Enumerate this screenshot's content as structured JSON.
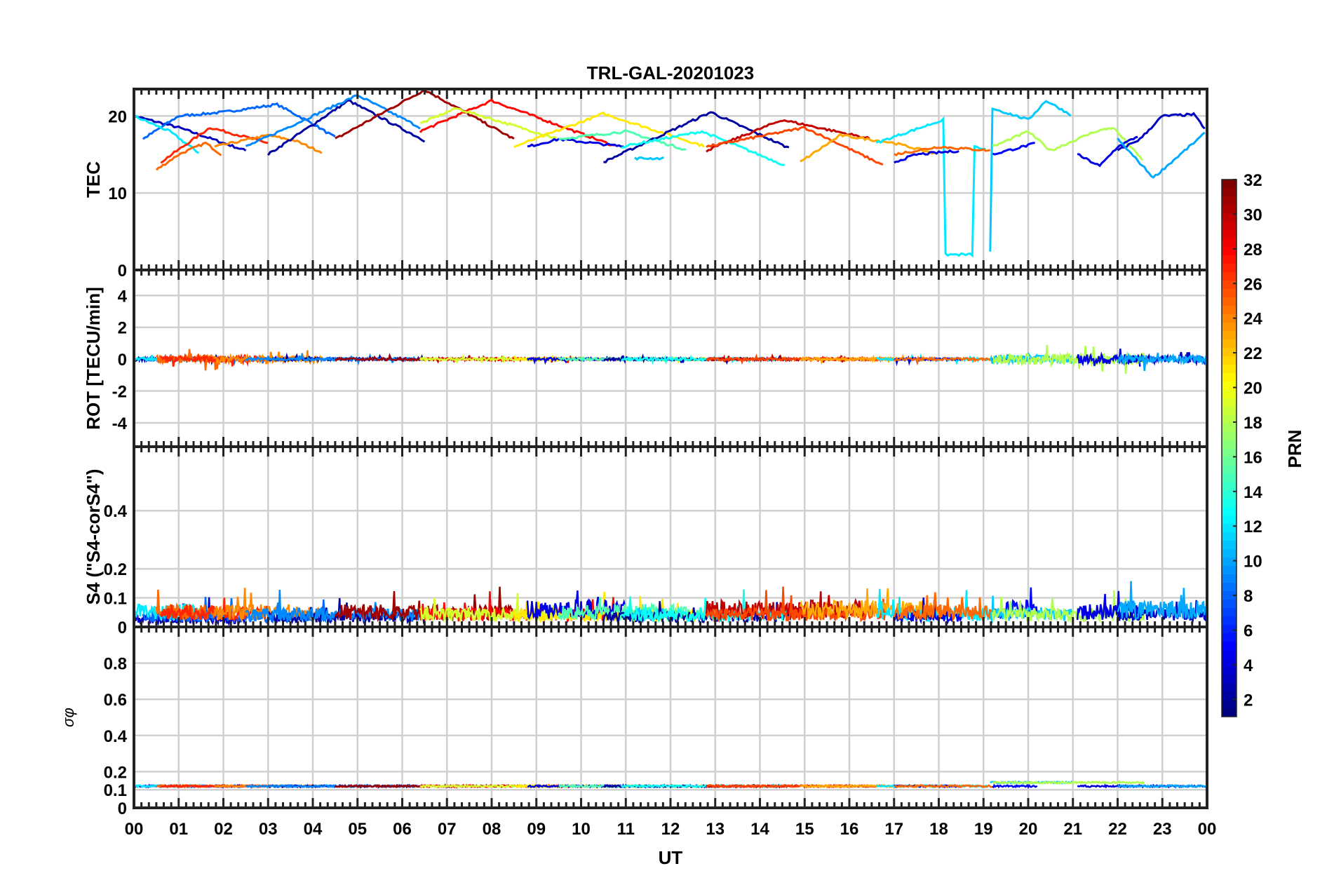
{
  "chart_data": {
    "type": "line",
    "title": "TRL-GAL-20201023",
    "xlabel": "UT",
    "xlim": [
      0,
      24
    ],
    "x_tick_labels": [
      "00",
      "01",
      "02",
      "03",
      "04",
      "05",
      "06",
      "07",
      "08",
      "09",
      "10",
      "11",
      "12",
      "13",
      "14",
      "15",
      "16",
      "17",
      "18",
      "19",
      "20",
      "21",
      "22",
      "23",
      "00"
    ],
    "colorbar": {
      "label": "PRN",
      "range": [
        1,
        32
      ],
      "ticks": [
        "2",
        "4",
        "6",
        "8",
        "10",
        "12",
        "14",
        "16",
        "18",
        "20",
        "22",
        "24",
        "26",
        "28",
        "30",
        "32"
      ],
      "colormap": "jet"
    },
    "panels": [
      {
        "id": "tec",
        "ylabel": "TEC",
        "ylim": [
          0,
          23.5
        ],
        "ticks": [
          0,
          10,
          20
        ],
        "tick_labels": [
          "0",
          "10",
          "20"
        ]
      },
      {
        "id": "rot",
        "ylabel": "ROT [TECU/min]",
        "ylim": [
          -5.5,
          5.6
        ],
        "ticks": [
          -4,
          -2,
          0,
          2,
          4
        ],
        "tick_labels": [
          "-4",
          "-2",
          "0",
          "2",
          "4"
        ]
      },
      {
        "id": "s4",
        "ylabel": "S4 (\"S4-corS4\")",
        "ylim": [
          0,
          0.62
        ],
        "ticks": [
          0,
          0.1,
          0.2,
          0.4
        ],
        "tick_labels": [
          "0",
          "0.1",
          "0.2",
          "0.4"
        ]
      },
      {
        "id": "sigma",
        "ylabel": "σφ",
        "ylim": [
          0,
          1
        ],
        "ticks": [
          0,
          0.1,
          0.2,
          0.4,
          0.6,
          0.8
        ],
        "tick_labels": [
          "0",
          "0.1",
          "0.2",
          "0.4",
          "0.6",
          "0.8"
        ]
      }
    ],
    "arcs": [
      {
        "prn": 3,
        "tec": [
          [
            0,
            20
          ],
          [
            1,
            18.5
          ],
          [
            2,
            16.5
          ],
          [
            2.5,
            15.5
          ]
        ],
        "rot": 0.1,
        "s4": 0.03,
        "sig": 0.12
      },
      {
        "prn": 8,
        "tec": [
          [
            0.2,
            17
          ],
          [
            1,
            20
          ],
          [
            2,
            20.5
          ],
          [
            3.2,
            21.5
          ],
          [
            4,
            19
          ],
          [
            4.5,
            17.2
          ]
        ],
        "rot": 0.1,
        "s4": 0.04,
        "sig": 0.12
      },
      {
        "prn": 12,
        "tec": [
          [
            0,
            20
          ],
          [
            0.8,
            18
          ],
          [
            1.5,
            15
          ]
        ],
        "rot": 0.1,
        "s4": 0.06,
        "sig": 0.12
      },
      {
        "prn": 25,
        "tec": [
          [
            0.5,
            13
          ],
          [
            1,
            15
          ],
          [
            1.6,
            16.5
          ],
          [
            2,
            14.8
          ]
        ],
        "rot": 0.25,
        "s4": 0.06,
        "sig": 0.12
      },
      {
        "prn": 27,
        "tec": [
          [
            0.6,
            14
          ],
          [
            1.7,
            18.5
          ],
          [
            3,
            16.5
          ]
        ],
        "rot": 0.2,
        "s4": 0.06,
        "sig": 0.12
      },
      {
        "prn": 24,
        "tec": [
          [
            1.8,
            16
          ],
          [
            3,
            17.5
          ],
          [
            3.6,
            16.8
          ],
          [
            4.2,
            15.3
          ]
        ],
        "rot": 0.2,
        "s4": 0.06,
        "sig": 0.12
      },
      {
        "prn": 2,
        "tec": [
          [
            3,
            15
          ],
          [
            4.8,
            22
          ],
          [
            6.5,
            16.8
          ]
        ],
        "rot": 0.08,
        "s4": 0.04,
        "sig": 0.12
      },
      {
        "prn": 9,
        "tec": [
          [
            2.5,
            16
          ],
          [
            5,
            22.7
          ],
          [
            6.4,
            18.5
          ]
        ],
        "rot": 0.08,
        "s4": 0.05,
        "sig": 0.12
      },
      {
        "prn": 31,
        "tec": [
          [
            4.5,
            17
          ],
          [
            6.5,
            23.4
          ],
          [
            8.5,
            17
          ]
        ],
        "rot": 0.08,
        "s4": 0.06,
        "sig": 0.12
      },
      {
        "prn": 28,
        "tec": [
          [
            6.4,
            18
          ],
          [
            8,
            22
          ],
          [
            10.8,
            16
          ]
        ],
        "rot": 0.08,
        "s4": 0.05,
        "sig": 0.12
      },
      {
        "prn": 19,
        "tec": [
          [
            6.4,
            19
          ],
          [
            7.2,
            21
          ],
          [
            9.5,
            17
          ]
        ],
        "rot": 0.08,
        "s4": 0.05,
        "sig": 0.12
      },
      {
        "prn": 21,
        "tec": [
          [
            8.5,
            16
          ],
          [
            10.5,
            20.3
          ],
          [
            12.8,
            16
          ]
        ],
        "rot": 0.08,
        "s4": 0.05,
        "sig": 0.12
      },
      {
        "prn": 4,
        "tec": [
          [
            8.8,
            16
          ],
          [
            9.5,
            17
          ],
          [
            11,
            16
          ]
        ],
        "rot": 0.08,
        "s4": 0.07,
        "sig": 0.12
      },
      {
        "prn": 15,
        "tec": [
          [
            9.5,
            17
          ],
          [
            11,
            18
          ],
          [
            12.4,
            15.5
          ]
        ],
        "rot": 0.08,
        "s4": 0.06,
        "sig": 0.12
      },
      {
        "prn": 11,
        "tec": [
          [
            11.2,
            14.5
          ],
          [
            11.9,
            14.5
          ]
        ],
        "rot": 0.08,
        "s4": 0.05,
        "sig": 0.12
      },
      {
        "prn": 2,
        "tec": [
          [
            10.5,
            14
          ],
          [
            12.9,
            20.5
          ],
          [
            14.7,
            15.7
          ]
        ],
        "rot": 0.08,
        "s4": 0.04,
        "sig": 0.12
      },
      {
        "prn": 13,
        "tec": [
          [
            10.9,
            16
          ],
          [
            12.7,
            18
          ],
          [
            14.6,
            13.5
          ]
        ],
        "rot": 0.08,
        "s4": 0.05,
        "sig": 0.12
      },
      {
        "prn": 30,
        "tec": [
          [
            12.8,
            15.5
          ],
          [
            14.5,
            19.5
          ],
          [
            16.5,
            17
          ]
        ],
        "rot": 0.08,
        "s4": 0.07,
        "sig": 0.12
      },
      {
        "prn": 26,
        "tec": [
          [
            12.8,
            16
          ],
          [
            15,
            18.5
          ],
          [
            16.8,
            13.5
          ]
        ],
        "rot": 0.08,
        "s4": 0.05,
        "sig": 0.12
      },
      {
        "prn": 23,
        "tec": [
          [
            14.9,
            14
          ],
          [
            15.8,
            17.5
          ],
          [
            17,
            16.5
          ],
          [
            18,
            15
          ]
        ],
        "rot": 0.08,
        "s4": 0.07,
        "sig": 0.12
      },
      {
        "prn": 12,
        "tec": [
          [
            16.6,
            16.5
          ],
          [
            18.1,
            19.5
          ],
          [
            18.15,
            2
          ],
          [
            18.75,
            2
          ],
          [
            18.8,
            16
          ],
          [
            19.1,
            15.5
          ]
        ],
        "rot": 0.08,
        "s4": 0.05,
        "sig": 0.12
      },
      {
        "prn": 4,
        "tec": [
          [
            17,
            14
          ],
          [
            17.5,
            15
          ],
          [
            18.5,
            15.5
          ]
        ],
        "rot": 0.08,
        "s4": 0.04,
        "sig": 0.12
      },
      {
        "prn": 25,
        "tec": [
          [
            17,
            15
          ],
          [
            18,
            16
          ],
          [
            19.2,
            15.5
          ]
        ],
        "rot": 0.08,
        "s4": 0.06,
        "sig": 0.12
      },
      {
        "prn": 5,
        "tec": [
          [
            19.2,
            15
          ],
          [
            20.2,
            16.5
          ]
        ],
        "rot": 0.1,
        "s4": 0.07,
        "sig": 0.12
      },
      {
        "prn": 11,
        "tec": [
          [
            19.15,
            2.5
          ],
          [
            19.2,
            21
          ],
          [
            20,
            19.5
          ],
          [
            20.4,
            22
          ],
          [
            21,
            20
          ],
          [
            21,
            13
          ]
        ],
        "rot": 0.25,
        "s4": 0.05,
        "sig": 0.14
      },
      {
        "prn": 18,
        "tec": [
          [
            19.2,
            16
          ],
          [
            20,
            18
          ],
          [
            20.5,
            15.5
          ],
          [
            21.5,
            18
          ],
          [
            21.9,
            18.5
          ],
          [
            22.6,
            14
          ]
        ],
        "rot": 0.35,
        "s4": 0.05,
        "sig": 0.14
      },
      {
        "prn": 4,
        "tec": [
          [
            21.1,
            15
          ],
          [
            21.6,
            13.5
          ],
          [
            22,
            16
          ],
          [
            22.5,
            17.5
          ]
        ],
        "rot": 0.3,
        "s4": 0.06,
        "sig": 0.12
      },
      {
        "prn": 3,
        "tec": [
          [
            22,
            15.5
          ],
          [
            22.5,
            17
          ],
          [
            23,
            20
          ],
          [
            23.7,
            20.2
          ],
          [
            24,
            18
          ]
        ],
        "rot": 0.25,
        "s4": 0.05,
        "sig": 0.12
      },
      {
        "prn": 10,
        "tec": [
          [
            22,
            17
          ],
          [
            22.8,
            12
          ],
          [
            24,
            18
          ]
        ],
        "rot": 0.25,
        "s4": 0.07,
        "sig": 0.12
      }
    ]
  }
}
